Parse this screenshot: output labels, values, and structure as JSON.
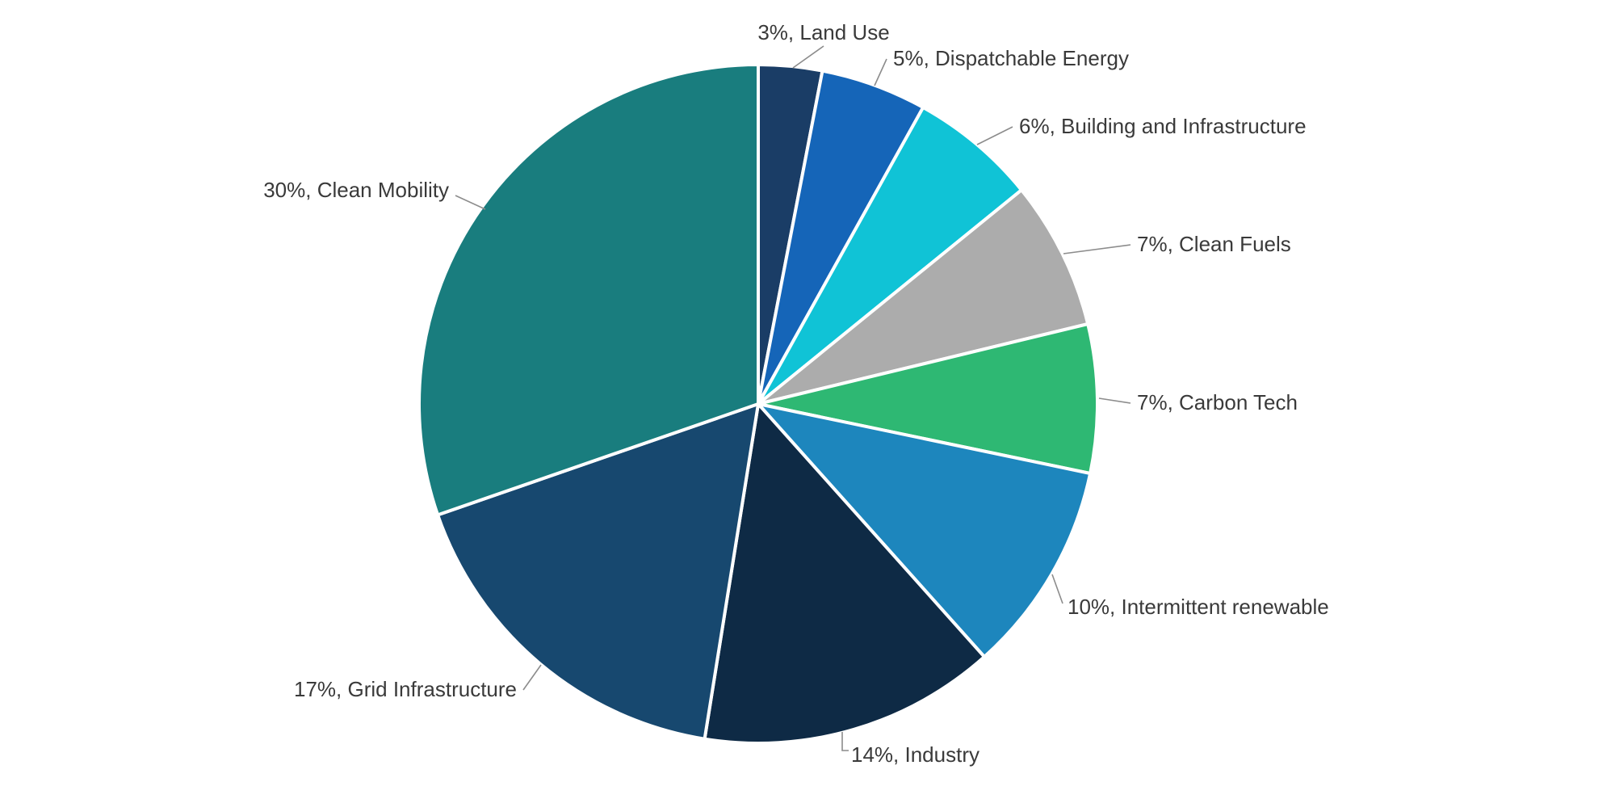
{
  "chart_data": {
    "type": "pie",
    "title": "",
    "background": "#FFFFFF",
    "legend_position": "none",
    "label_style": "outside callouts with leader lines, format: value%, name",
    "start_angle_deg": 0,
    "direction": "clockwise",
    "leader_line_color": "#8C8C8C",
    "slice_border_color": "#FFFFFF",
    "label_text_color": "#3A3A3A",
    "slices": [
      {
        "name": "Land Use",
        "value": 3,
        "display": "3%, Land Use",
        "color": "#1A3D66"
      },
      {
        "name": "Dispatchable Energy",
        "value": 5,
        "display": "5%, Dispatchable Energy",
        "color": "#1565B8"
      },
      {
        "name": "Building and Infrastructure",
        "value": 6,
        "display": "6%, Building and Infrastructure",
        "color": "#10C3D6"
      },
      {
        "name": "Clean Fuels",
        "value": 7,
        "display": "7%, Clean Fuels",
        "color": "#ACACAC"
      },
      {
        "name": "Carbon Tech",
        "value": 7,
        "display": "7%, Carbon Tech",
        "color": "#2EB873"
      },
      {
        "name": "Intermittent renewable",
        "value": 10,
        "display": "10%, Intermittent renewable",
        "color": "#1D86BD"
      },
      {
        "name": "Industry",
        "value": 14,
        "display": "14%, Industry",
        "color": "#0E2A45"
      },
      {
        "name": "Grid Infrastructure",
        "value": 17,
        "display": "17%, Grid Infrastructure",
        "color": "#17486F"
      },
      {
        "name": "Clean Mobility",
        "value": 30,
        "display": "30%, Clean Mobility",
        "color": "#197D7E"
      }
    ]
  }
}
